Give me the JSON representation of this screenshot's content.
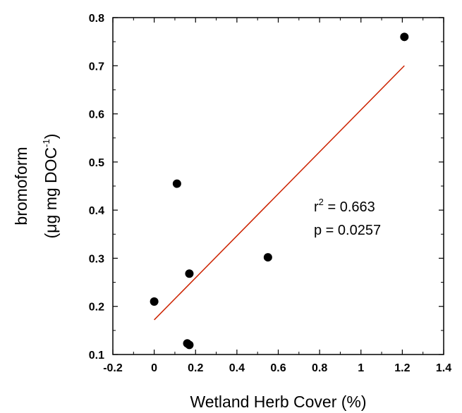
{
  "chart_data": {
    "type": "scatter",
    "xlabel": "Wetland Herb Cover (%)",
    "ylabel_line1": "bromoform",
    "ylabel_line2_pre": "(μg mg DOC",
    "ylabel_line2_sup": "-1",
    "ylabel_line2_post": ")",
    "xlim": [
      -0.2,
      1.4
    ],
    "ylim": [
      0.1,
      0.8
    ],
    "xticks": [
      -0.2,
      0,
      0.2,
      0.4,
      0.6,
      0.8,
      1,
      1.2,
      1.4
    ],
    "xtick_labels": [
      "-0.2",
      "0",
      "0.2",
      "0.4",
      "0.6",
      "0.8",
      "1",
      "1.2",
      "1.4"
    ],
    "yticks": [
      0.1,
      0.2,
      0.3,
      0.4,
      0.5,
      0.6,
      0.7,
      0.8
    ],
    "ytick_labels": [
      "0.1",
      "0.2",
      "0.3",
      "0.4",
      "0.5",
      "0.6",
      "0.7",
      "0.8"
    ],
    "points": [
      {
        "x": 0.0,
        "y": 0.21
      },
      {
        "x": 0.11,
        "y": 0.455
      },
      {
        "x": 0.16,
        "y": 0.123
      },
      {
        "x": 0.17,
        "y": 0.12
      },
      {
        "x": 0.17,
        "y": 0.268
      },
      {
        "x": 0.55,
        "y": 0.302
      },
      {
        "x": 1.21,
        "y": 0.76
      }
    ],
    "fit_line": {
      "x": [
        0.0,
        1.21
      ],
      "y": [
        0.172,
        0.7
      ],
      "color": "#cc2200"
    },
    "annotation": {
      "r2_pre": "r",
      "r2_sup": "2",
      "r2_post": " = 0.663",
      "p": "p = 0.0257"
    },
    "point_color": "#000000"
  }
}
